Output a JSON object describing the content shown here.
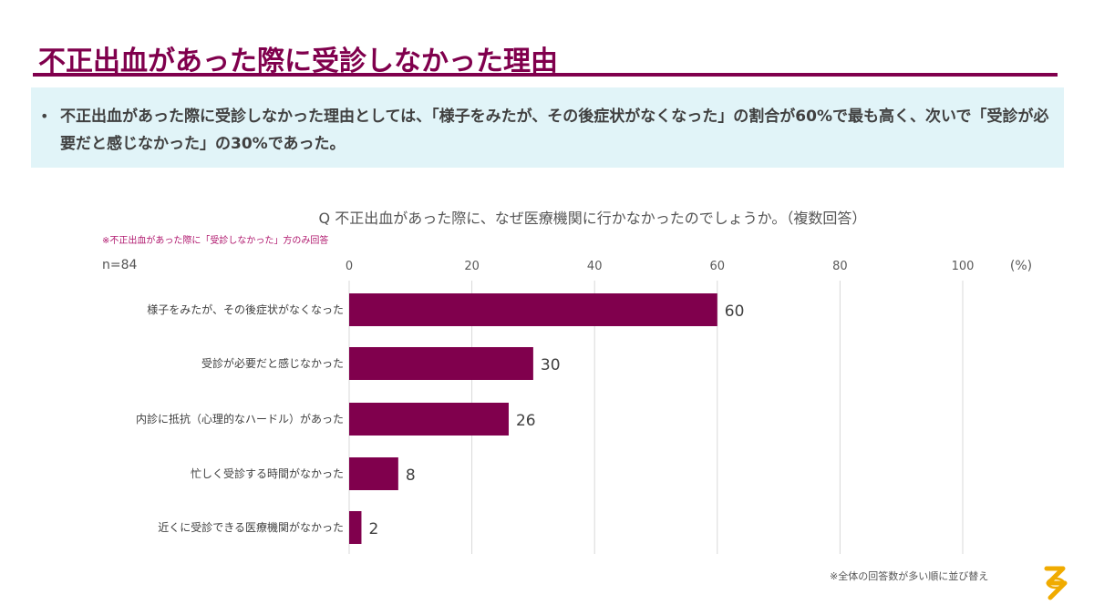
{
  "header": {
    "title": "不正出血があった際に受診しなかった理由"
  },
  "summary": {
    "bullet": "•",
    "text": "不正出血があった際に受診しなかった理由としては、「様子をみたが、その後症状がなくなった」の割合が60%で最も高く、次いで「受診が必要だと感じなかった」の30%であった。"
  },
  "question": "Q 不正出血があった際に、なぜ医療機関に行かなかったのでしょうか。（複数回答）",
  "note": "※不正出血があった際に「受診しなかった」方のみ回答",
  "sample_size": "n=84",
  "footnote": "※全体の回答数が多い順に並び替え",
  "colors": {
    "accent": "#80004d",
    "summary_bg": "#e1f4f8",
    "logo": "#f0ab00"
  },
  "chart_data": {
    "type": "bar",
    "orientation": "horizontal",
    "categories": [
      "様子をみたが、その後症状がなくなった",
      "受診が必要だと感じなかった",
      "内診に抵抗（心理的なハードル）があった",
      "忙しく受診する時間がなかった",
      "近くに受診できる医療機関がなかった"
    ],
    "values": [
      60,
      30,
      26,
      8,
      2
    ],
    "xlim": [
      0,
      100
    ],
    "xticks": [
      "0",
      "20",
      "40",
      "60",
      "80",
      "100"
    ],
    "unit": "(%)",
    "grid": true,
    "axis_position": "top",
    "bar_color": "#80004d"
  }
}
